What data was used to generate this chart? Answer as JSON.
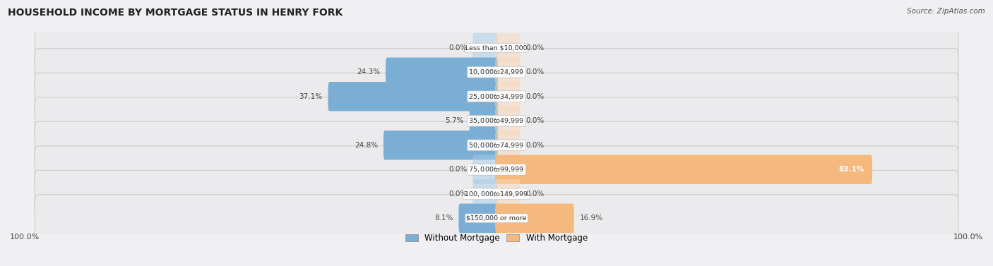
{
  "title": "HOUSEHOLD INCOME BY MORTGAGE STATUS IN HENRY FORK",
  "source": "Source: ZipAtlas.com",
  "categories": [
    "Less than $10,000",
    "$10,000 to $24,999",
    "$25,000 to $34,999",
    "$35,000 to $49,999",
    "$50,000 to $74,999",
    "$75,000 to $99,999",
    "$100,000 to $149,999",
    "$150,000 or more"
  ],
  "without_mortgage": [
    0.0,
    24.3,
    37.1,
    5.7,
    24.8,
    0.0,
    0.0,
    8.1
  ],
  "with_mortgage": [
    0.0,
    0.0,
    0.0,
    0.0,
    0.0,
    83.1,
    0.0,
    16.9
  ],
  "color_without": "#7aaed4",
  "color_without_light": "#aacde8",
  "color_with": "#f5b97e",
  "color_with_light": "#f9d9b8",
  "bg_row": "#e8e8eb",
  "axis_left_label": "100.0%",
  "axis_right_label": "100.0%",
  "max_val": 100.0,
  "stub_val": 5.0,
  "figsize": [
    14.06,
    3.77
  ],
  "dpi": 100
}
